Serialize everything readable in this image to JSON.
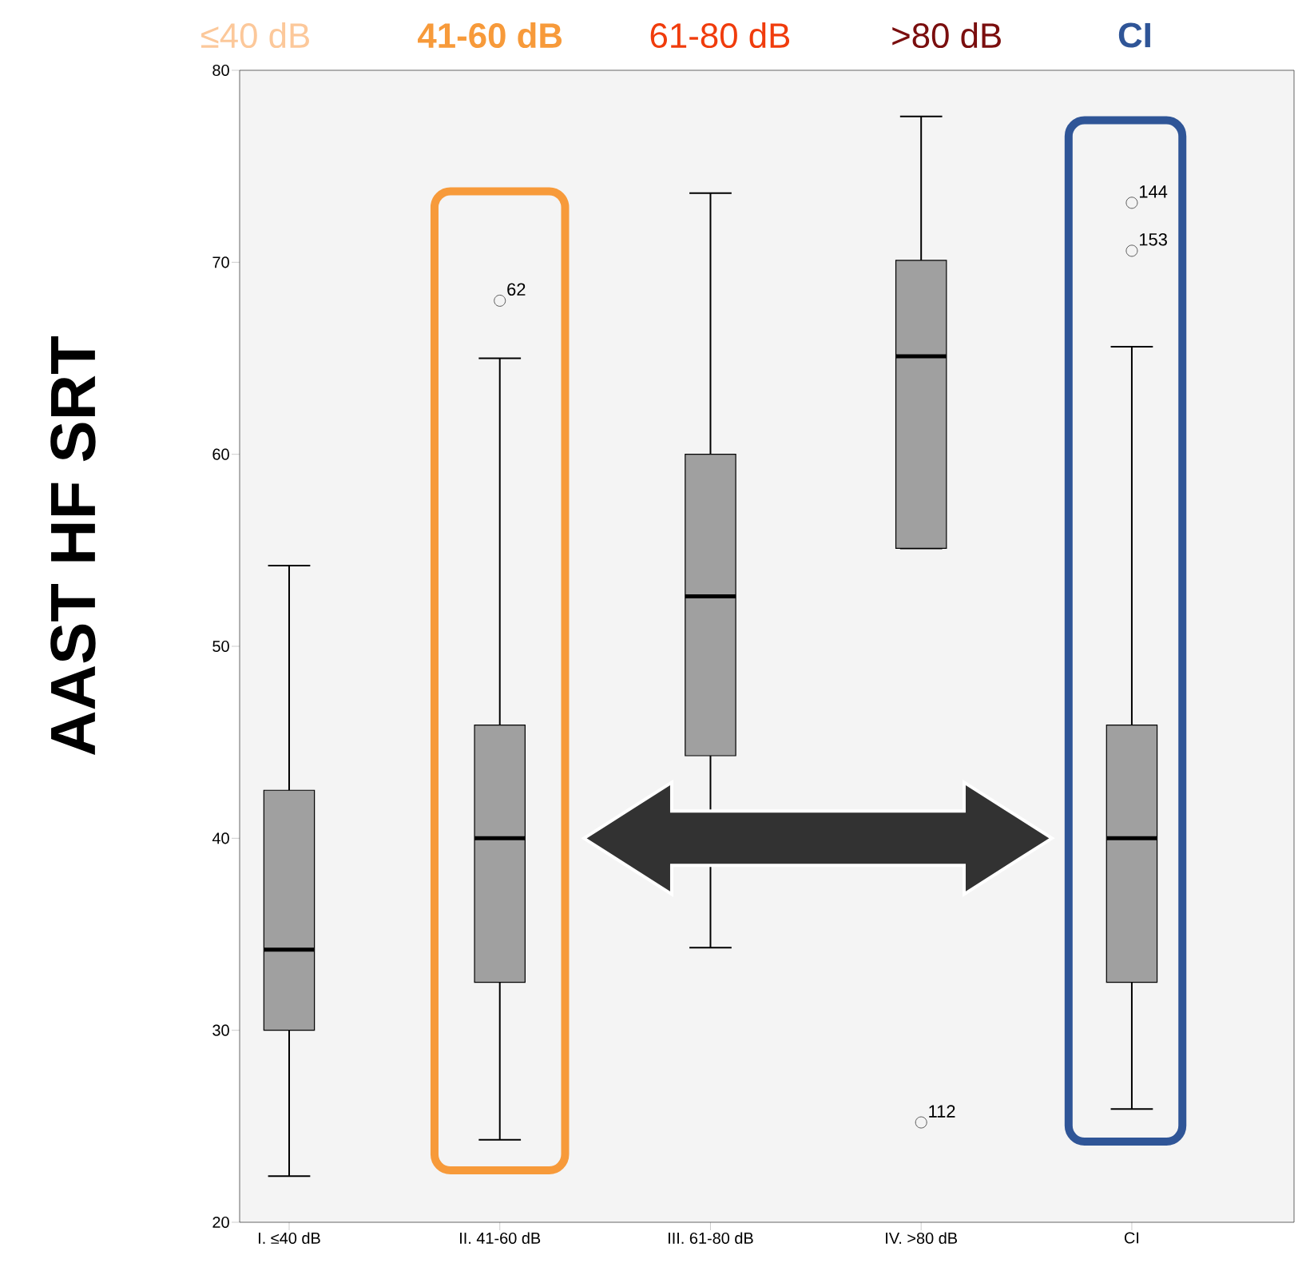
{
  "chart_data": {
    "type": "box",
    "ylabel": "AAST HF SRT",
    "categories": [
      "I. ≤40 dB",
      "II. 41-60 dB",
      "III. 61-80 dB",
      "IV. >80 dB",
      "CI"
    ],
    "boxes": [
      {
        "low": 22.4,
        "q1": 30,
        "median": 34.2,
        "q3": 42.5,
        "high": 54.2
      },
      {
        "low": 24.3,
        "q1": 32.5,
        "median": 40,
        "q3": 45.9,
        "high": 65,
        "outliers": [
          68
        ]
      },
      {
        "low": 34.3,
        "q1": 44.3,
        "median": 52.6,
        "q3": 60,
        "high": 73.6
      },
      {
        "low": 55.1,
        "q1": 55.1,
        "median": 65.1,
        "q3": 70.1,
        "high": 77.6,
        "outliers": [
          25.2
        ]
      },
      {
        "low": 25.9,
        "q1": 32.5,
        "median": 40,
        "q3": 45.9,
        "high": 65.6,
        "outliers": [
          73.1,
          70.6
        ]
      }
    ],
    "color": "#a0a0a0",
    "ylim": [
      20,
      80
    ],
    "yticks": [
      20,
      30,
      40,
      50,
      60,
      70,
      80
    ],
    "grid": false,
    "annotations": [
      "≤40 dB",
      "41-60 dB",
      "61-80 dB",
      ">80 dB",
      "CI",
      "62",
      "112",
      "144",
      "153"
    ]
  }
}
